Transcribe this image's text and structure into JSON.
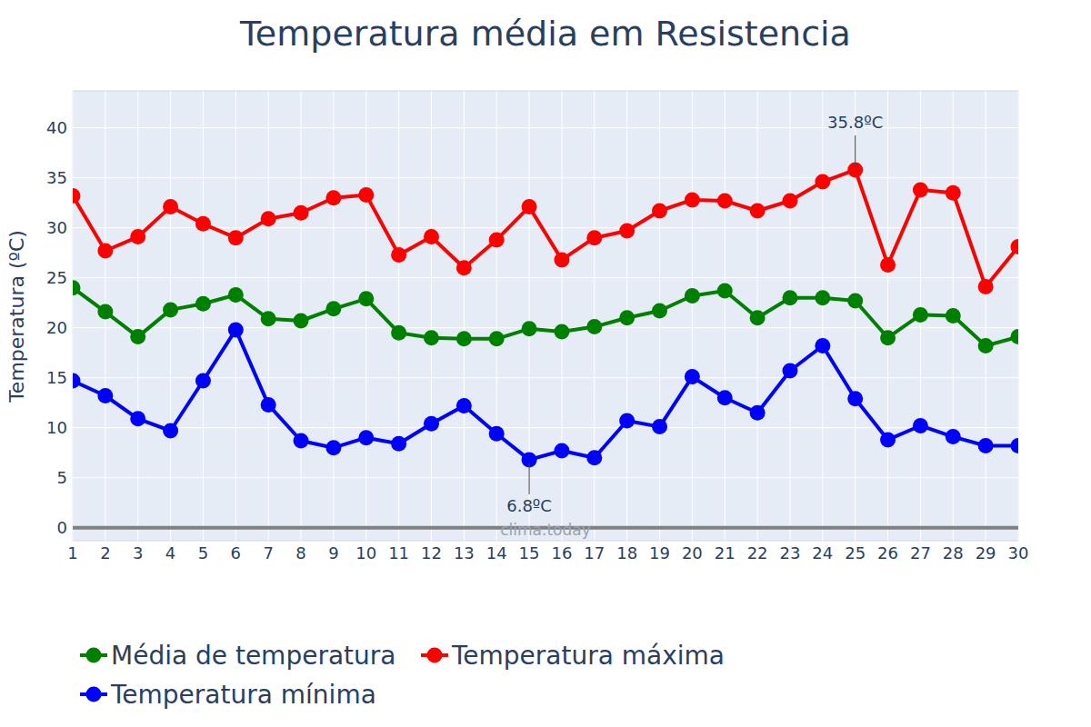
{
  "chart_data": {
    "type": "line",
    "title": "Temperatura média em Resistencia",
    "y_label": "Temperatura (ºC)",
    "source": "clima.today",
    "x": [
      1,
      2,
      3,
      4,
      5,
      6,
      7,
      8,
      9,
      10,
      11,
      12,
      13,
      14,
      15,
      16,
      17,
      18,
      19,
      20,
      21,
      22,
      23,
      24,
      25,
      26,
      27,
      28,
      29,
      30
    ],
    "xlim": [
      1,
      30
    ],
    "xticks": [
      1,
      2,
      3,
      4,
      5,
      6,
      7,
      8,
      9,
      10,
      11,
      12,
      13,
      14,
      15,
      16,
      17,
      18,
      19,
      20,
      21,
      22,
      23,
      24,
      25,
      26,
      27,
      28,
      29,
      30
    ],
    "ylim": [
      -1.3,
      43.7
    ],
    "yticks": [
      0,
      5,
      10,
      15,
      20,
      25,
      30,
      35,
      40
    ],
    "grid": true,
    "legend": "bottom",
    "series": [
      {
        "name": "Média de temperatura",
        "color": "#008000",
        "marker": "circle",
        "values": [
          24.0,
          21.6,
          19.1,
          21.8,
          22.4,
          23.3,
          20.9,
          20.7,
          21.9,
          22.9,
          19.5,
          19.0,
          18.9,
          18.9,
          19.9,
          19.6,
          20.1,
          21.0,
          21.7,
          23.2,
          23.7,
          21.0,
          23.0,
          23.0,
          22.7,
          19.0,
          21.3,
          21.2,
          18.2,
          19.1
        ]
      },
      {
        "name": "Temperatura máxima",
        "color": "#ff0000",
        "marker": "circle",
        "values": [
          33.2,
          27.7,
          29.1,
          32.1,
          30.4,
          29.0,
          30.9,
          31.5,
          33.0,
          33.3,
          27.3,
          29.1,
          26.0,
          28.8,
          32.1,
          26.8,
          29.0,
          29.7,
          31.7,
          32.8,
          32.7,
          31.7,
          32.7,
          34.6,
          35.8,
          26.3,
          33.8,
          33.5,
          24.1,
          28.1
        ]
      },
      {
        "name": "Temperatura mínima",
        "color": "#0000ff",
        "marker": "circle",
        "values": [
          14.7,
          13.2,
          10.9,
          9.7,
          14.7,
          19.8,
          12.3,
          8.7,
          8.0,
          9.0,
          8.4,
          10.4,
          12.2,
          9.4,
          6.8,
          7.7,
          7.0,
          10.7,
          10.1,
          15.1,
          13.0,
          11.5,
          15.7,
          18.2,
          12.9,
          8.8,
          10.2,
          9.1,
          8.2,
          8.2
        ]
      }
    ],
    "annotations": [
      {
        "text": "35.8ºC",
        "x": 25,
        "y": 35.8
      },
      {
        "text": "6.8ºC",
        "x": 15,
        "y": 6.8
      }
    ]
  }
}
